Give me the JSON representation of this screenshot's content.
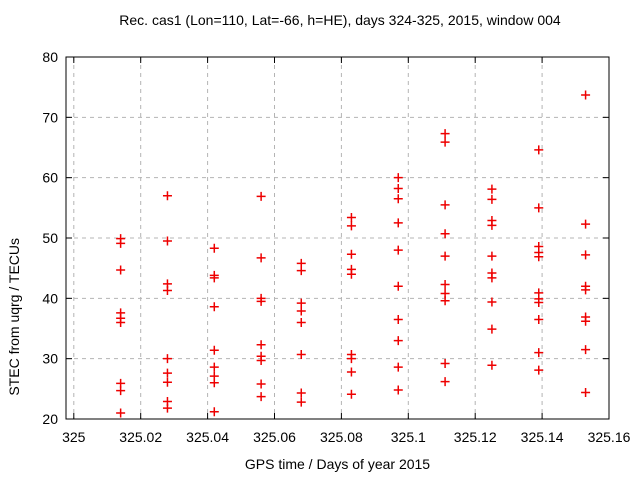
{
  "chart_data": {
    "type": "scatter",
    "title": "Rec. cas1 (Lon=110, Lat=-66, h=HE), days 324-325, 2015, window 004",
    "xlabel": "GPS time / Days of year 2015",
    "ylabel": "STEC from uqrg / TECUs",
    "xlim": [
      324.9977,
      325.16
    ],
    "ylim": [
      20,
      80
    ],
    "xticks": [
      325,
      325.02,
      325.04,
      325.06,
      325.08,
      325.1,
      325.12,
      325.14,
      325.16
    ],
    "xtick_labels": [
      "325",
      "325.02",
      "325.04",
      "325.06",
      "325.08",
      "325.1",
      "325.12",
      "325.14",
      "325.16"
    ],
    "yticks": [
      20,
      30,
      40,
      50,
      60,
      70,
      80
    ],
    "ytick_labels": [
      "20",
      "30",
      "40",
      "50",
      "60",
      "70",
      "80"
    ],
    "grid": true,
    "legend": "none",
    "marker": {
      "shape": "plus",
      "color": "#ee0000",
      "size": 9
    },
    "grid_color": "#b4b4b4",
    "border_color": "#000000",
    "series": [
      {
        "name": "STEC",
        "points": [
          [
            325.014,
            49.9
          ],
          [
            325.014,
            49.1
          ],
          [
            325.014,
            44.7
          ],
          [
            325.014,
            37.6
          ],
          [
            325.014,
            36.7
          ],
          [
            325.014,
            36.0
          ],
          [
            325.014,
            25.9
          ],
          [
            325.014,
            24.7
          ],
          [
            325.014,
            21.0
          ],
          [
            325.028,
            57.0
          ],
          [
            325.028,
            49.5
          ],
          [
            325.028,
            42.4
          ],
          [
            325.028,
            41.3
          ],
          [
            325.028,
            30.0
          ],
          [
            325.028,
            27.6
          ],
          [
            325.028,
            26.1
          ],
          [
            325.028,
            22.9
          ],
          [
            325.028,
            21.8
          ],
          [
            325.042,
            48.3
          ],
          [
            325.042,
            43.8
          ],
          [
            325.042,
            43.4
          ],
          [
            325.042,
            38.6
          ],
          [
            325.042,
            31.4
          ],
          [
            325.042,
            28.6
          ],
          [
            325.042,
            27.1
          ],
          [
            325.042,
            26.0
          ],
          [
            325.042,
            21.2
          ],
          [
            325.056,
            56.9
          ],
          [
            325.056,
            46.7
          ],
          [
            325.056,
            40.0
          ],
          [
            325.056,
            39.5
          ],
          [
            325.056,
            32.3
          ],
          [
            325.056,
            30.4
          ],
          [
            325.056,
            29.7
          ],
          [
            325.056,
            25.8
          ],
          [
            325.056,
            23.7
          ],
          [
            325.068,
            45.8
          ],
          [
            325.068,
            44.6
          ],
          [
            325.068,
            39.2
          ],
          [
            325.068,
            37.9
          ],
          [
            325.068,
            36.0
          ],
          [
            325.068,
            30.7
          ],
          [
            325.068,
            24.3
          ],
          [
            325.068,
            22.8
          ],
          [
            325.083,
            53.4
          ],
          [
            325.083,
            52.0
          ],
          [
            325.083,
            47.3
          ],
          [
            325.083,
            44.8
          ],
          [
            325.083,
            44.0
          ],
          [
            325.083,
            30.7
          ],
          [
            325.083,
            30.0
          ],
          [
            325.083,
            27.8
          ],
          [
            325.083,
            24.1
          ],
          [
            325.097,
            60.0
          ],
          [
            325.097,
            58.2
          ],
          [
            325.097,
            56.5
          ],
          [
            325.097,
            52.5
          ],
          [
            325.097,
            48.0
          ],
          [
            325.097,
            42.0
          ],
          [
            325.097,
            36.5
          ],
          [
            325.097,
            33.0
          ],
          [
            325.097,
            28.6
          ],
          [
            325.097,
            24.8
          ],
          [
            325.111,
            67.3
          ],
          [
            325.111,
            65.9
          ],
          [
            325.111,
            55.5
          ],
          [
            325.111,
            50.7
          ],
          [
            325.111,
            47.0
          ],
          [
            325.111,
            42.3
          ],
          [
            325.111,
            40.8
          ],
          [
            325.111,
            39.6
          ],
          [
            325.111,
            29.2
          ],
          [
            325.111,
            26.2
          ],
          [
            325.125,
            58.1
          ],
          [
            325.125,
            56.4
          ],
          [
            325.125,
            52.9
          ],
          [
            325.125,
            52.1
          ],
          [
            325.125,
            47.0
          ],
          [
            325.125,
            44.2
          ],
          [
            325.125,
            43.4
          ],
          [
            325.125,
            39.4
          ],
          [
            325.125,
            34.9
          ],
          [
            325.125,
            28.9
          ],
          [
            325.139,
            64.6
          ],
          [
            325.139,
            55.0
          ],
          [
            325.139,
            48.6
          ],
          [
            325.139,
            47.6
          ],
          [
            325.139,
            46.9
          ],
          [
            325.139,
            40.9
          ],
          [
            325.139,
            39.9
          ],
          [
            325.139,
            39.3
          ],
          [
            325.139,
            36.5
          ],
          [
            325.139,
            31.0
          ],
          [
            325.139,
            28.1
          ],
          [
            325.153,
            73.7
          ],
          [
            325.153,
            52.3
          ],
          [
            325.153,
            47.2
          ],
          [
            325.153,
            42.0
          ],
          [
            325.153,
            41.4
          ],
          [
            325.153,
            36.9
          ],
          [
            325.153,
            36.2
          ],
          [
            325.153,
            31.5
          ],
          [
            325.153,
            24.4
          ]
        ]
      }
    ]
  }
}
